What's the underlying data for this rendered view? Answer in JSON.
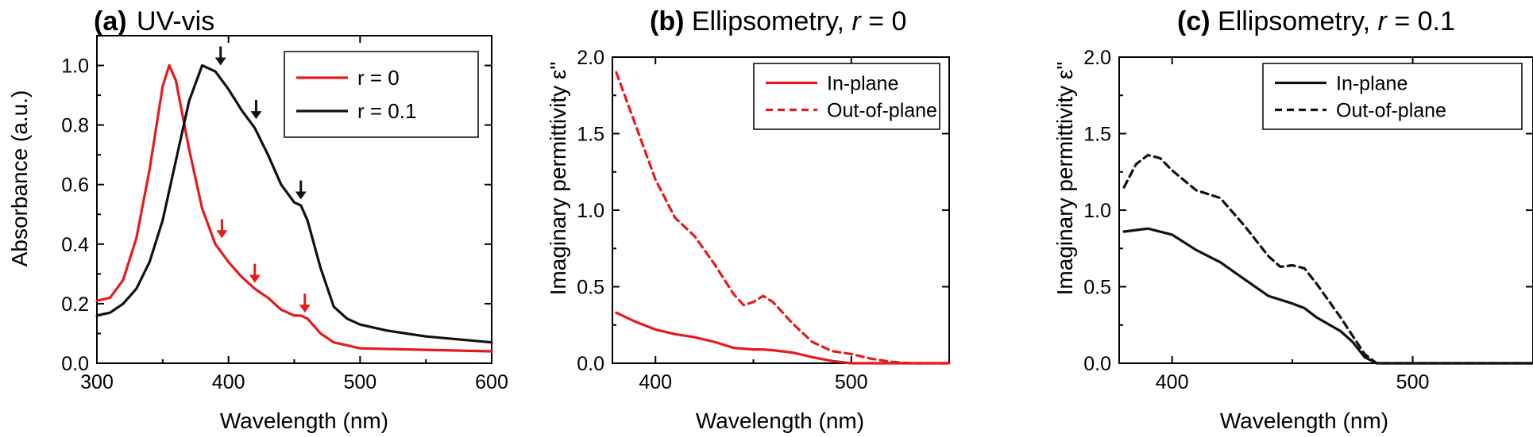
{
  "chart_data": [
    {
      "type": "line",
      "panel_label": "(a)",
      "title": "UV-vis",
      "xlabel": "Wavelength (nm)",
      "ylabel": "Absorbance (a.u.)",
      "xlim": [
        300,
        600
      ],
      "ylim": [
        0,
        1.1
      ],
      "xticks": [
        "300",
        "400",
        "500",
        "600"
      ],
      "yticks": [
        "0.0",
        "0.2",
        "0.4",
        "0.6",
        "0.8",
        "1.0"
      ],
      "legend_position": "top-right",
      "series": [
        {
          "name": "r = 0",
          "color": "#e8191b",
          "dash": "solid",
          "x": [
            300,
            310,
            320,
            330,
            340,
            350,
            355,
            360,
            370,
            380,
            390,
            400,
            410,
            420,
            430,
            440,
            450,
            455,
            460,
            470,
            480,
            500,
            550,
            600
          ],
          "y": [
            0.21,
            0.22,
            0.28,
            0.42,
            0.65,
            0.93,
            1.0,
            0.95,
            0.72,
            0.52,
            0.4,
            0.34,
            0.29,
            0.25,
            0.22,
            0.18,
            0.16,
            0.16,
            0.15,
            0.1,
            0.07,
            0.05,
            0.045,
            0.04
          ]
        },
        {
          "name": "r = 0.1",
          "color": "#111111",
          "dash": "solid",
          "x": [
            300,
            310,
            320,
            330,
            340,
            350,
            360,
            370,
            380,
            390,
            400,
            410,
            420,
            430,
            440,
            450,
            455,
            460,
            470,
            480,
            490,
            500,
            520,
            550,
            600
          ],
          "y": [
            0.16,
            0.17,
            0.2,
            0.25,
            0.34,
            0.48,
            0.68,
            0.88,
            1.0,
            0.98,
            0.92,
            0.85,
            0.79,
            0.7,
            0.6,
            0.54,
            0.53,
            0.48,
            0.32,
            0.19,
            0.15,
            0.13,
            0.11,
            0.09,
            0.07
          ]
        }
      ],
      "arrows": [
        {
          "color": "#111111",
          "x": 394,
          "y": 1.0
        },
        {
          "color": "#111111",
          "x": 421,
          "y": 0.82
        },
        {
          "color": "#111111",
          "x": 455,
          "y": 0.55
        },
        {
          "color": "#e8191b",
          "x": 395,
          "y": 0.42
        },
        {
          "color": "#e8191b",
          "x": 420,
          "y": 0.27
        },
        {
          "color": "#e8191b",
          "x": 458,
          "y": 0.17
        }
      ]
    },
    {
      "type": "line",
      "panel_label": "(b)",
      "title_prefix": "Ellipsometry, ",
      "title_var": "r",
      "title_suffix": " = 0",
      "xlabel": "Wavelength (nm)",
      "ylabel": "Imaginary permittivity ε\"",
      "xlim": [
        378,
        550
      ],
      "ylim": [
        0,
        2.0
      ],
      "xticks": [
        "400",
        "500"
      ],
      "yticks": [
        "0.0",
        "0.5",
        "1.0",
        "1.5",
        "2.0"
      ],
      "legend_position": "top-right",
      "series": [
        {
          "name": "In-plane",
          "color": "#e8191b",
          "dash": "solid",
          "x": [
            380,
            390,
            400,
            410,
            420,
            430,
            440,
            450,
            455,
            460,
            470,
            480,
            490,
            500,
            520,
            550
          ],
          "y": [
            0.33,
            0.27,
            0.22,
            0.19,
            0.17,
            0.14,
            0.1,
            0.09,
            0.09,
            0.085,
            0.07,
            0.04,
            0.015,
            0.0,
            0.0,
            0.0
          ]
        },
        {
          "name": "Out-of-plane",
          "color": "#e8191b",
          "dash": "dashed",
          "x": [
            380,
            390,
            400,
            410,
            420,
            430,
            440,
            445,
            450,
            455,
            460,
            470,
            480,
            490,
            500,
            510,
            520,
            530,
            550
          ],
          "y": [
            1.9,
            1.55,
            1.2,
            0.95,
            0.83,
            0.65,
            0.45,
            0.38,
            0.4,
            0.44,
            0.4,
            0.26,
            0.14,
            0.08,
            0.06,
            0.03,
            0.01,
            0.0,
            0.0
          ]
        }
      ]
    },
    {
      "type": "line",
      "panel_label": "(c)",
      "title_prefix": "Ellipsometry, ",
      "title_var": "r",
      "title_suffix": " = 0.1",
      "xlabel": "Wavelength (nm)",
      "ylabel": "Imaginary permittivity ε\"",
      "xlim": [
        378,
        550
      ],
      "ylim": [
        0,
        2.0
      ],
      "xticks": [
        "400",
        "500"
      ],
      "yticks": [
        "0.0",
        "0.5",
        "1.0",
        "1.5",
        "2.0"
      ],
      "legend_position": "top-right",
      "series": [
        {
          "name": "In-plane",
          "color": "#111111",
          "dash": "solid",
          "x": [
            380,
            385,
            390,
            400,
            410,
            420,
            430,
            440,
            450,
            455,
            460,
            470,
            475,
            480,
            485,
            490,
            550
          ],
          "y": [
            0.86,
            0.87,
            0.88,
            0.84,
            0.74,
            0.66,
            0.55,
            0.44,
            0.39,
            0.36,
            0.3,
            0.21,
            0.14,
            0.04,
            0.0,
            0.0,
            0.0
          ]
        },
        {
          "name": "Out-of-plane",
          "color": "#111111",
          "dash": "dashed",
          "x": [
            380,
            385,
            390,
            395,
            400,
            410,
            420,
            430,
            440,
            445,
            450,
            455,
            460,
            470,
            475,
            480,
            485,
            490,
            550
          ],
          "y": [
            1.15,
            1.3,
            1.36,
            1.34,
            1.26,
            1.13,
            1.08,
            0.9,
            0.7,
            0.63,
            0.64,
            0.62,
            0.52,
            0.3,
            0.18,
            0.06,
            0.0,
            0.0,
            0.0
          ]
        }
      ]
    }
  ]
}
